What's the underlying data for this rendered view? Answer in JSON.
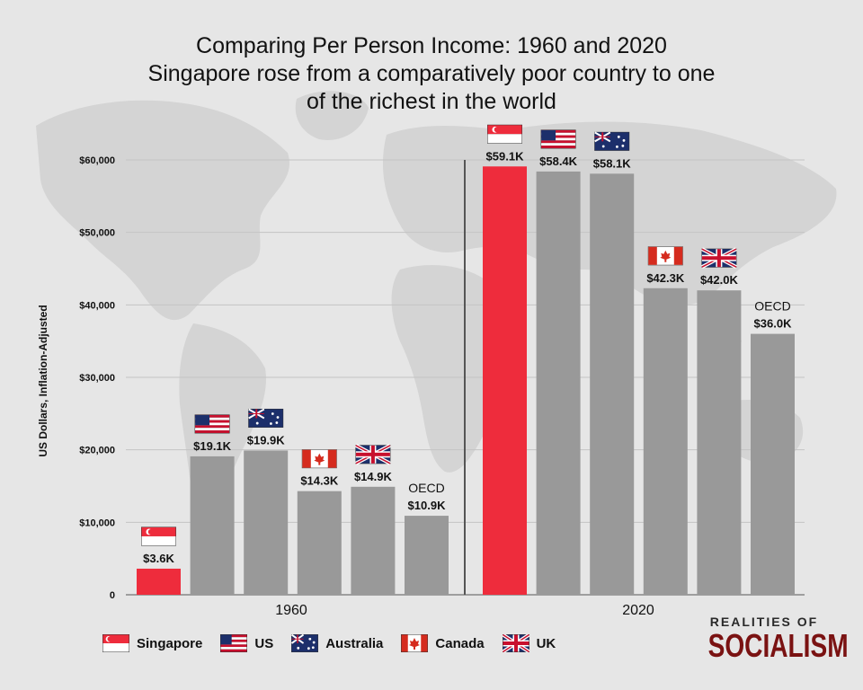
{
  "title": {
    "line1": "Comparing Per Person Income: 1960 and 2020",
    "line2": "Singapore rose from a comparatively poor country to one",
    "line3": "of the richest in the world"
  },
  "chart_data": {
    "type": "bar",
    "ylabel": "US Dollars, Inflation-Adjusted",
    "ylim": [
      0,
      60000
    ],
    "y_ticks": [
      {
        "value": 0,
        "label": "0"
      },
      {
        "value": 10000,
        "label": "$10,000"
      },
      {
        "value": 20000,
        "label": "$20,000"
      },
      {
        "value": 30000,
        "label": "$30,000"
      },
      {
        "value": 40000,
        "label": "$40,000"
      },
      {
        "value": 50000,
        "label": "$50,000"
      },
      {
        "value": 60000,
        "label": "$60,000"
      }
    ],
    "grid": true,
    "highlight_color": "#ee2c3c",
    "bar_color": "#999999",
    "groups": [
      {
        "label": "1960",
        "bars": [
          {
            "entity": "Singapore",
            "value": 3600,
            "label": "$3.6K",
            "flag": "singapore-flag-icon",
            "highlight": true
          },
          {
            "entity": "US",
            "value": 19100,
            "label": "$19.1K",
            "flag": "us-flag-icon",
            "highlight": false
          },
          {
            "entity": "Australia",
            "value": 19900,
            "label": "$19.9K",
            "flag": "australia-flag-icon",
            "highlight": false
          },
          {
            "entity": "Canada",
            "value": 14300,
            "label": "$14.3K",
            "flag": "canada-flag-icon",
            "highlight": false
          },
          {
            "entity": "UK",
            "value": 14900,
            "label": "$14.9K",
            "flag": "uk-flag-icon",
            "highlight": false
          },
          {
            "entity": "OECD",
            "value": 10900,
            "label": "$10.9K",
            "name_label": "OECD",
            "highlight": false
          }
        ]
      },
      {
        "label": "2020",
        "bars": [
          {
            "entity": "Singapore",
            "value": 59100,
            "label": "$59.1K",
            "flag": "singapore-flag-icon",
            "highlight": true
          },
          {
            "entity": "US",
            "value": 58400,
            "label": "$58.4K",
            "flag": "us-flag-icon",
            "highlight": false
          },
          {
            "entity": "Australia",
            "value": 58100,
            "label": "$58.1K",
            "flag": "australia-flag-icon",
            "highlight": false
          },
          {
            "entity": "Canada",
            "value": 42300,
            "label": "$42.3K",
            "flag": "canada-flag-icon",
            "highlight": false
          },
          {
            "entity": "UK",
            "value": 42000,
            "label": "$42.0K",
            "flag": "uk-flag-icon",
            "highlight": false
          },
          {
            "entity": "OECD",
            "value": 36000,
            "label": "$36.0K",
            "name_label": "OECD",
            "highlight": false
          }
        ]
      }
    ],
    "legend": [
      {
        "label": "Singapore",
        "flag": "singapore-flag-icon"
      },
      {
        "label": "US",
        "flag": "us-flag-icon"
      },
      {
        "label": "Australia",
        "flag": "australia-flag-icon"
      },
      {
        "label": "Canada",
        "flag": "canada-flag-icon"
      },
      {
        "label": "UK",
        "flag": "uk-flag-icon"
      }
    ],
    "legend_position": "bottom-left"
  },
  "brand": {
    "top": "REALITIES OF",
    "bottom": "SOCIALISM"
  }
}
